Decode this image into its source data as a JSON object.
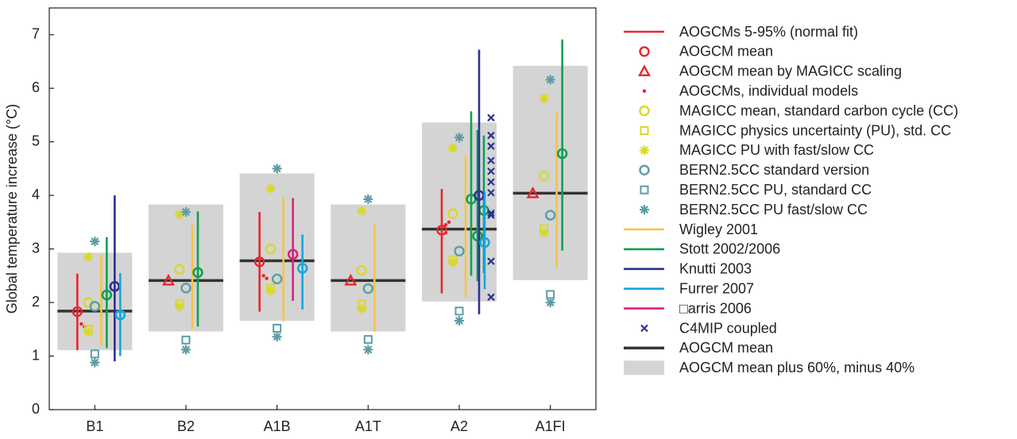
{
  "chart_data": {
    "type": "ensemble",
    "ylabel": "Global temperature increase (°C)",
    "categories": [
      "B1",
      "B2",
      "A1B",
      "A1T",
      "A2",
      "A1FI"
    ],
    "ylim": [
      0,
      7.5
    ],
    "yticks": [
      0,
      1,
      2,
      3,
      4,
      5,
      6,
      7
    ],
    "series": [
      {
        "name": "AOGCMs 5-95% (normal fit)",
        "color": "#e8262d",
        "kind": "range",
        "values": [
          [
            [
              1.11,
              2.54
            ]
          ],
          null,
          [
            [
              1.83,
              3.69
            ]
          ],
          null,
          [
            [
              2.17,
              4.12
            ]
          ],
          null
        ]
      },
      {
        "name": "AOGCM mean",
        "color": "#e8262d",
        "kind": "circle",
        "values": [
          1.83,
          null,
          2.76,
          null,
          3.35,
          null
        ]
      },
      {
        "name": "AOGCM mean by MAGICC scaling",
        "color": "#e8262d",
        "kind": "triangle",
        "values": [
          null,
          2.41,
          null,
          2.41,
          null,
          4.04
        ]
      },
      {
        "name": "AOGCMs, individual models",
        "color": "#e8262d",
        "kind": "dot",
        "values": [
          [
            1.6,
            1.55
          ],
          null,
          [
            2.5,
            2.45
          ],
          null,
          [
            3.3,
            3.5,
            3.45
          ],
          null
        ]
      },
      {
        "name": "MAGICC mean, standard carbon cycle (CC)",
        "color": "#d8d82a",
        "kind": "circle",
        "values": [
          2.0,
          2.62,
          3.0,
          2.6,
          3.66,
          4.36
        ]
      },
      {
        "name": "MAGICC physics uncertainty (PU), std. CC",
        "color": "#d8d82a",
        "kind": "square",
        "values": [
          1.5,
          1.98,
          2.27,
          1.97,
          2.8,
          3.38
        ]
      },
      {
        "name": "MAGICC PU with fast/slow CC",
        "color": "#d8d82a",
        "kind": "star",
        "values": [
          [
            2.85,
            1.45
          ],
          [
            3.64,
            1.92
          ],
          [
            4.13,
            2.22
          ],
          [
            3.71,
            1.88
          ],
          [
            4.88,
            2.75
          ],
          [
            5.81,
            3.3
          ]
        ]
      },
      {
        "name": "BERN2.5CC standard version",
        "color": "#5a9ea6",
        "kind": "circle",
        "values": [
          1.93,
          2.27,
          2.44,
          2.26,
          2.96,
          3.63
        ]
      },
      {
        "name": "BERN2.5CC PU, standard CC",
        "color": "#5a9ea6",
        "kind": "square",
        "values": [
          1.04,
          1.3,
          1.52,
          1.31,
          1.84,
          2.15
        ]
      },
      {
        "name": "BERN2.5CC PU fast/slow CC",
        "color": "#5a9ea6",
        "kind": "star",
        "values": [
          [
            3.14,
            0.88
          ],
          [
            3.69,
            1.12
          ],
          [
            4.5,
            1.36
          ],
          [
            3.93,
            1.12
          ],
          [
            5.08,
            1.66
          ],
          [
            6.16,
            2.0
          ]
        ]
      },
      {
        "name": "Wigley 2001",
        "color": "#f7c444",
        "kind": "range",
        "values": [
          [
            [
              1.2,
              2.9
            ]
          ],
          [
            [
              1.5,
              3.45
            ]
          ],
          [
            [
              1.65,
              3.97
            ]
          ],
          [
            [
              1.45,
              3.45
            ]
          ],
          [
            [
              2.1,
              4.75
            ]
          ],
          [
            [
              2.65,
              5.55
            ]
          ]
        ]
      },
      {
        "name": "Stott 2002/2006",
        "color": "#10a050",
        "kind": "range",
        "values": [
          [
            [
              1.15,
              3.22
            ]
          ],
          [
            [
              1.55,
              3.7
            ]
          ],
          null,
          null,
          [
            [
              2.5,
              5.57
            ],
            [
              2.4,
              5.22
            ],
            [
              2.55,
              5.12
            ]
          ],
          [
            [
              2.97,
              6.91
            ]
          ]
        ],
        "means": [
          [
            2.14
          ],
          [
            2.56
          ],
          null,
          null,
          [
            3.93,
            3.24,
            3.72
          ],
          [
            4.78
          ]
        ]
      },
      {
        "name": "Knutti 2003",
        "color": "#2e3192",
        "kind": "range",
        "values": [
          [
            [
              0.9,
              4.0
            ]
          ],
          null,
          null,
          null,
          [
            [
              1.78,
              6.72
            ]
          ],
          null
        ],
        "means": [
          [
            2.3
          ],
          null,
          null,
          null,
          [
            4.0
          ],
          null
        ]
      },
      {
        "name": "Furrer 2007",
        "color": "#12a8e0",
        "kind": "range",
        "values": [
          [
            [
              1.0,
              2.55
            ]
          ],
          null,
          [
            [
              1.87,
              3.27
            ]
          ],
          null,
          [
            [
              2.25,
              4.07
            ]
          ],
          null
        ],
        "means": [
          [
            1.77
          ],
          null,
          [
            2.64
          ],
          null,
          [
            3.12
          ],
          null
        ]
      },
      {
        "name": "□arris 2006",
        "color": "#e0207f",
        "kind": "range",
        "values": [
          null,
          null,
          [
            [
              2.03,
              3.95
            ]
          ],
          null,
          null,
          null
        ],
        "means": [
          null,
          null,
          [
            2.9
          ],
          null,
          null,
          null
        ]
      },
      {
        "name": "C4MIP coupled",
        "color": "#2e3192",
        "kind": "cross",
        "values": [
          null,
          null,
          null,
          null,
          [
            5.45,
            5.12,
            4.92,
            4.65,
            4.45,
            4.25,
            4.05,
            3.67,
            3.63,
            2.77,
            2.1
          ],
          null
        ]
      },
      {
        "name": "AOGCM mean",
        "color": "#333333",
        "kind": "hline",
        "values": [
          1.84,
          2.41,
          2.78,
          2.41,
          3.37,
          4.04
        ]
      },
      {
        "name": "AOGCM mean plus 60%, minus 40%",
        "color": "#d4d4d4",
        "kind": "box",
        "values": [
          [
            1.11,
            2.93
          ],
          [
            1.46,
            3.83
          ],
          [
            1.66,
            4.41
          ],
          [
            1.46,
            3.83
          ],
          [
            2.02,
            5.36
          ],
          [
            2.42,
            6.42
          ]
        ]
      }
    ]
  }
}
